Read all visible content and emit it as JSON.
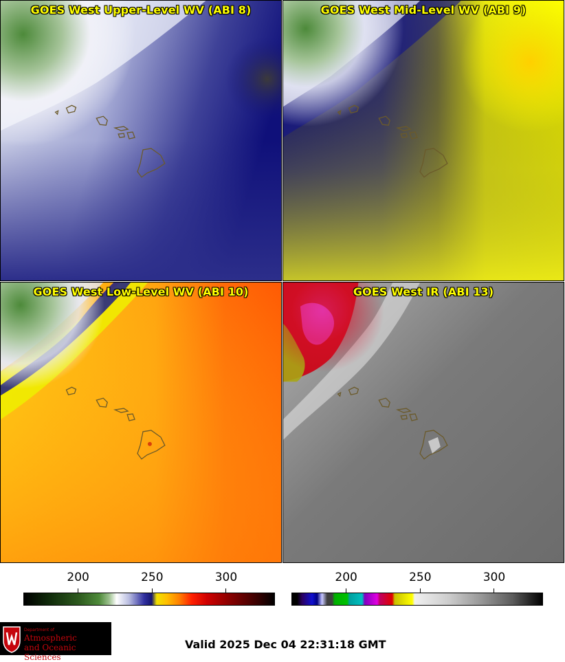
{
  "panels": [
    {
      "id": "upper",
      "title": "GOES West Upper-Level WV (ABI 8)"
    },
    {
      "id": "mid",
      "title": "GOES West Mid-Level WV (ABI 9)"
    },
    {
      "id": "low",
      "title": "GOES West Low-Level WV (ABI 10)"
    },
    {
      "id": "ir",
      "title": "GOES West IR (ABI 13)"
    }
  ],
  "colorbars": {
    "wv": {
      "ticks": [
        "200",
        "250",
        "300"
      ],
      "tick_values": [
        200,
        250,
        300
      ],
      "range": [
        163,
        333
      ]
    },
    "ir": {
      "ticks": [
        "200",
        "250",
        "300"
      ],
      "tick_values": [
        200,
        250,
        300
      ],
      "range": [
        163,
        333
      ]
    }
  },
  "logo": {
    "dept": "Department of",
    "line1": "Atmospheric",
    "line2": "and Oceanic Sciences"
  },
  "valid_time": "Valid 2025 Dec 04 22:31:18 GMT",
  "colors": {
    "outline": "#6b5a2a",
    "title": "#ffff00"
  }
}
